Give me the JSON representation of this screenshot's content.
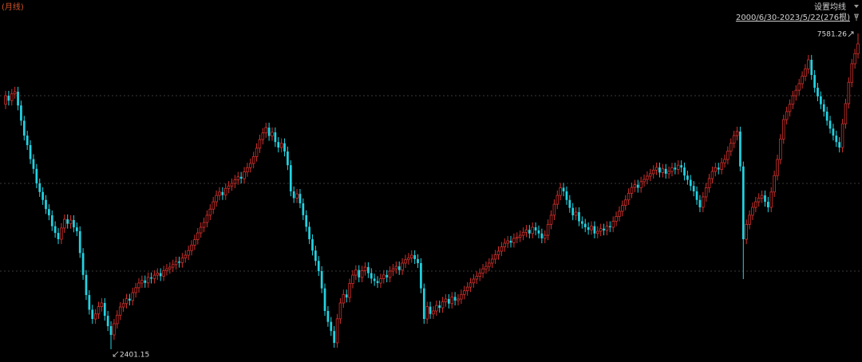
{
  "chart_data": {
    "type": "candlestick",
    "title": "(月线)",
    "ma_button": "设置均线",
    "range_label": "2000/6/30-2023/5/22(276根)",
    "up_color": "#d0302c",
    "down_color": "#22d3e2",
    "grid_color": "#3a3a3a",
    "ylim": [
      2192,
      8130
    ],
    "yticks": [
      3683,
      5122,
      6560
    ],
    "grid": true,
    "max_index": 275,
    "min_index": 34,
    "open": [
      6420,
      6560,
      6480,
      6590,
      6626,
      6400,
      6150,
      5906,
      5750,
      5520,
      5360,
      5122,
      4980,
      4850,
      4700,
      4598,
      4420,
      4310,
      4206,
      4390,
      4533,
      4460,
      4520,
      4400,
      4337,
      3980,
      3620,
      3290,
      3050,
      2898,
      2980,
      3100,
      3160,
      2950,
      2780,
      2636,
      2820,
      2960,
      3094,
      3150,
      3230,
      3200,
      3330,
      3410,
      3487,
      3530,
      3490,
      3580,
      3560,
      3617,
      3650,
      3600,
      3690,
      3720,
      3748,
      3790,
      3840,
      3820,
      3900,
      3944,
      4020,
      4110,
      4200,
      4310,
      4402,
      4480,
      4600,
      4700,
      4820,
      4925,
      4980,
      4930,
      5040,
      5080,
      5122,
      5180,
      5230,
      5200,
      5310,
      5380,
      5449,
      5560,
      5700,
      5841,
      5950,
      6037,
      5900,
      5960,
      5800,
      5710,
      5780,
      5645,
      5420,
      4991,
      4880,
      4950,
      4795,
      4600,
      4410,
      4206,
      4020,
      3850,
      3683,
      3400,
      3029,
      2850,
      2700,
      2506,
      2900,
      3160,
      3300,
      3250,
      3480,
      3617,
      3700,
      3580,
      3690,
      3748,
      3650,
      3560,
      3520,
      3487,
      3560,
      3620,
      3580,
      3683,
      3720,
      3760,
      3700,
      3814,
      3870,
      3900,
      3944,
      3880,
      3814,
      3400,
      2898,
      3100,
      2980,
      3029,
      3120,
      3080,
      3180,
      3225,
      3150,
      3260,
      3200,
      3225,
      3300,
      3360,
      3420,
      3490,
      3552,
      3600,
      3650,
      3720,
      3760,
      3814,
      3880,
      3950,
      4010,
      4080,
      4141,
      4180,
      4150,
      4220,
      4240,
      4271,
      4320,
      4360,
      4300,
      4402,
      4350,
      4300,
      4220,
      4271,
      4450,
      4600,
      4780,
      4925,
      5050,
      4991,
      4850,
      4720,
      4598,
      4650,
      4500,
      4460,
      4402,
      4360,
      4420,
      4300,
      4337,
      4380,
      4350,
      4420,
      4402,
      4500,
      4580,
      4664,
      4760,
      4850,
      4960,
      5056,
      5100,
      5050,
      5150,
      5187,
      5240,
      5280,
      5340,
      5383,
      5300,
      5360,
      5280,
      5318,
      5380,
      5350,
      5420,
      5383,
      5250,
      5180,
      5080,
      4991,
      4850,
      4729,
      4900,
      5050,
      5200,
      5318,
      5380,
      5350,
      5460,
      5514,
      5650,
      5780,
      5906,
      5972,
      5400,
      4206,
      4450,
      4600,
      4729,
      4820,
      4880,
      4925,
      4820,
      4729,
      4980,
      5250,
      5514,
      5850,
      6168,
      6300,
      6420,
      6560,
      6650,
      6757,
      6880,
      7000,
      7149,
      6900,
      6691,
      6550,
      6420,
      6299,
      6150,
      6020,
      5906,
      5800,
      5710,
      6100,
      6430,
      6780,
      7084,
      7250
    ],
    "high": [
      6640,
      6640,
      6670,
      6706,
      6706,
      6480,
      6230,
      5986,
      5830,
      5600,
      5440,
      5202,
      5060,
      4930,
      4780,
      4678,
      4500,
      4390,
      4470,
      4613,
      4613,
      4600,
      4600,
      4480,
      4417,
      4060,
      3700,
      3370,
      3130,
      3060,
      3180,
      3240,
      3240,
      3030,
      2860,
      2900,
      3040,
      3174,
      3230,
      3310,
      3310,
      3410,
      3490,
      3567,
      3610,
      3610,
      3660,
      3660,
      3697,
      3730,
      3730,
      3770,
      3800,
      3828,
      3870,
      3920,
      3920,
      3980,
      4024,
      4100,
      4190,
      4280,
      4390,
      4482,
      4560,
      4680,
      4780,
      4900,
      5005,
      5060,
      5060,
      5120,
      5160,
      5202,
      5260,
      5310,
      5310,
      5390,
      5460,
      5529,
      5640,
      5780,
      5921,
      6030,
      6117,
      6117,
      6040,
      6040,
      5880,
      5860,
      5860,
      5725,
      5500,
      5071,
      5030,
      5030,
      4875,
      4680,
      4490,
      4286,
      4100,
      3930,
      3763,
      3480,
      3109,
      2930,
      2780,
      2980,
      3240,
      3380,
      3380,
      3560,
      3697,
      3780,
      3780,
      3770,
      3828,
      3828,
      3730,
      3640,
      3600,
      3640,
      3700,
      3700,
      3763,
      3800,
      3840,
      3840,
      3894,
      3950,
      3980,
      4024,
      4024,
      3960,
      3894,
      3480,
      3180,
      3180,
      3109,
      3200,
      3200,
      3260,
      3305,
      3305,
      3340,
      3340,
      3305,
      3380,
      3440,
      3500,
      3570,
      3632,
      3680,
      3730,
      3800,
      3840,
      3894,
      3960,
      4030,
      4090,
      4160,
      4221,
      4260,
      4260,
      4300,
      4320,
      4351,
      4400,
      4440,
      4440,
      4482,
      4482,
      4430,
      4380,
      4351,
      4530,
      4680,
      4860,
      5005,
      5130,
      5130,
      5071,
      4930,
      4800,
      4730,
      4730,
      4580,
      4540,
      4482,
      4500,
      4500,
      4417,
      4460,
      4460,
      4500,
      4500,
      4580,
      4660,
      4744,
      4840,
      4930,
      5040,
      5136,
      5180,
      5180,
      5230,
      5267,
      5320,
      5360,
      5420,
      5463,
      5463,
      5440,
      5440,
      5398,
      5460,
      5460,
      5500,
      5500,
      5463,
      5330,
      5260,
      5160,
      5071,
      4930,
      4980,
      5130,
      5280,
      5398,
      5460,
      5460,
      5540,
      5594,
      5730,
      5860,
      5986,
      6052,
      6052,
      5480,
      4530,
      4680,
      4809,
      4900,
      4960,
      5005,
      5005,
      4900,
      5060,
      5330,
      5594,
      5930,
      6248,
      6380,
      6500,
      6640,
      6730,
      6837,
      6960,
      7080,
      7229,
      7229,
      6980,
      6771,
      6630,
      6500,
      6379,
      6230,
      6100,
      5986,
      5880,
      6180,
      6510,
      6860,
      7164,
      7330,
      7581.26
    ],
    "low": [
      6340,
      6400,
      6400,
      6510,
      6320,
      6070,
      5826,
      5670,
      5440,
      5280,
      5042,
      4900,
      4770,
      4620,
      4518,
      4340,
      4230,
      4126,
      4126,
      4310,
      4380,
      4380,
      4320,
      4257,
      3900,
      3540,
      3210,
      2970,
      2818,
      2818,
      2900,
      3020,
      2870,
      2700,
      2401.15,
      2556,
      2740,
      2880,
      3014,
      3070,
      3120,
      3120,
      3250,
      3330,
      3407,
      3410,
      3410,
      3480,
      3480,
      3537,
      3520,
      3520,
      3610,
      3640,
      3668,
      3710,
      3740,
      3740,
      3820,
      3864,
      3940,
      4030,
      4120,
      4230,
      4322,
      4400,
      4520,
      4620,
      4740,
      4845,
      4850,
      4850,
      4960,
      5000,
      5042,
      5100,
      5120,
      5120,
      5230,
      5300,
      5369,
      5480,
      5620,
      5761,
      5870,
      5820,
      5820,
      5720,
      5630,
      5630,
      5565,
      5340,
      4911,
      4800,
      4800,
      4715,
      4520,
      4330,
      4126,
      3940,
      3770,
      3603,
      3320,
      2949,
      2770,
      2620,
      2426,
      2426,
      2820,
      3080,
      3170,
      3170,
      3400,
      3537,
      3500,
      3500,
      3610,
      3570,
      3480,
      3440,
      3407,
      3407,
      3480,
      3500,
      3500,
      3603,
      3640,
      3620,
      3620,
      3734,
      3790,
      3820,
      3800,
      3734,
      3320,
      2818,
      2818,
      2900,
      2900,
      2949,
      3000,
      3000,
      3100,
      3070,
      3070,
      3120,
      3120,
      3145,
      3220,
      3280,
      3340,
      3410,
      3472,
      3520,
      3570,
      3640,
      3680,
      3734,
      3800,
      3870,
      3930,
      4000,
      4061,
      4070,
      4070,
      4140,
      4160,
      4191,
      4240,
      4220,
      4220,
      4270,
      4220,
      4140,
      4140,
      4191,
      4370,
      4520,
      4700,
      4845,
      4911,
      4770,
      4640,
      4518,
      4518,
      4420,
      4380,
      4322,
      4280,
      4280,
      4220,
      4220,
      4257,
      4270,
      4270,
      4322,
      4322,
      4420,
      4500,
      4584,
      4680,
      4770,
      4880,
      4976,
      4970,
      4970,
      5070,
      5107,
      5160,
      5200,
      5260,
      5220,
      5220,
      5200,
      5200,
      5238,
      5270,
      5270,
      5303,
      5170,
      5100,
      5000,
      4911,
      4770,
      4649,
      4649,
      4820,
      4970,
      5120,
      5238,
      5270,
      5270,
      5380,
      5434,
      5570,
      5700,
      5826,
      5320,
      3552,
      4126,
      4370,
      4520,
      4649,
      4740,
      4800,
      4740,
      4649,
      4649,
      4900,
      5170,
      5434,
      5770,
      6088,
      6220,
      6340,
      6480,
      6570,
      6677,
      6800,
      6920,
      6820,
      6611,
      6470,
      6340,
      6219,
      6070,
      5940,
      5826,
      5720,
      5630,
      5630,
      6020,
      6350,
      6700,
      7004,
      7170
    ],
    "close": [
      6560,
      6480,
      6590,
      6626,
      6400,
      6150,
      5906,
      5750,
      5520,
      5360,
      5122,
      4980,
      4850,
      4700,
      4598,
      4420,
      4310,
      4206,
      4390,
      4533,
      4460,
      4520,
      4400,
      4337,
      3980,
      3620,
      3290,
      3050,
      2898,
      2980,
      3100,
      3160,
      2950,
      2780,
      2636,
      2820,
      2960,
      3094,
      3150,
      3230,
      3200,
      3330,
      3410,
      3487,
      3530,
      3490,
      3580,
      3560,
      3617,
      3650,
      3600,
      3690,
      3720,
      3748,
      3790,
      3840,
      3820,
      3900,
      3944,
      4020,
      4110,
      4200,
      4310,
      4402,
      4480,
      4600,
      4700,
      4820,
      4925,
      4980,
      4930,
      5040,
      5080,
      5122,
      5180,
      5230,
      5200,
      5310,
      5380,
      5449,
      5560,
      5700,
      5841,
      5950,
      6037,
      5900,
      5960,
      5800,
      5710,
      5780,
      5645,
      5420,
      4991,
      4880,
      4950,
      4795,
      4600,
      4410,
      4206,
      4020,
      3850,
      3683,
      3400,
      3029,
      2850,
      2700,
      2506,
      2900,
      3160,
      3300,
      3250,
      3480,
      3617,
      3700,
      3580,
      3690,
      3748,
      3650,
      3560,
      3520,
      3487,
      3560,
      3620,
      3580,
      3683,
      3720,
      3760,
      3700,
      3814,
      3870,
      3900,
      3944,
      3880,
      3814,
      3400,
      2898,
      3100,
      2980,
      3029,
      3120,
      3080,
      3180,
      3225,
      3150,
      3260,
      3200,
      3225,
      3300,
      3360,
      3420,
      3490,
      3552,
      3600,
      3650,
      3720,
      3760,
      3814,
      3880,
      3950,
      4010,
      4080,
      4141,
      4180,
      4150,
      4220,
      4240,
      4271,
      4320,
      4360,
      4300,
      4402,
      4350,
      4300,
      4220,
      4271,
      4450,
      4600,
      4780,
      4925,
      5050,
      4991,
      4850,
      4720,
      4598,
      4650,
      4500,
      4460,
      4402,
      4360,
      4420,
      4300,
      4337,
      4380,
      4350,
      4420,
      4402,
      4500,
      4580,
      4664,
      4760,
      4850,
      4960,
      5056,
      5100,
      5050,
      5150,
      5187,
      5240,
      5280,
      5340,
      5383,
      5300,
      5360,
      5280,
      5318,
      5380,
      5350,
      5420,
      5383,
      5250,
      5180,
      5080,
      4991,
      4850,
      4729,
      4900,
      5050,
      5200,
      5318,
      5380,
      5350,
      5460,
      5514,
      5650,
      5780,
      5906,
      5972,
      5400,
      4206,
      4450,
      4600,
      4729,
      4820,
      4880,
      4925,
      4820,
      4729,
      4980,
      5250,
      5514,
      5850,
      6168,
      6300,
      6420,
      6560,
      6650,
      6757,
      6880,
      7000,
      7149,
      6900,
      6691,
      6550,
      6420,
      6299,
      6150,
      6020,
      5906,
      5800,
      5710,
      6100,
      6430,
      6780,
      7084,
      7250,
      7411
    ]
  }
}
